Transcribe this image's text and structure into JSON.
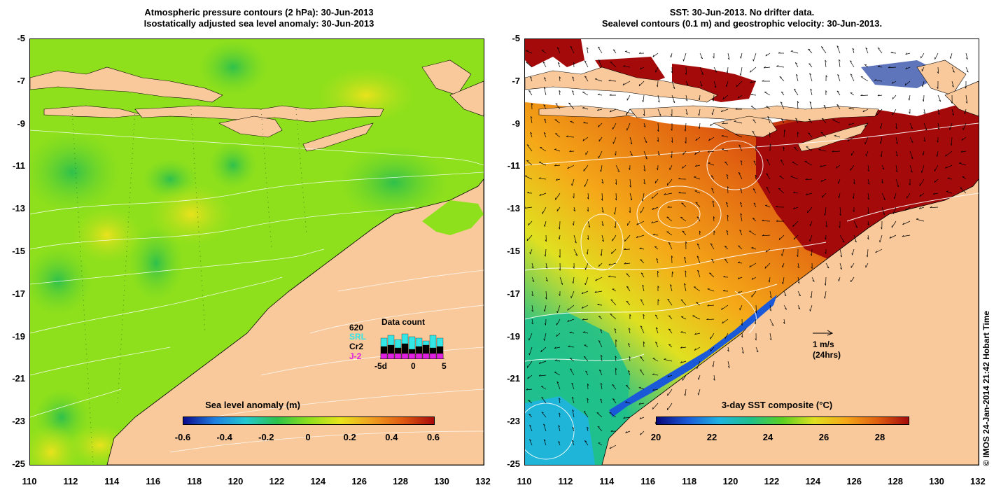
{
  "left_panel": {
    "title_line1": "Atmospheric pressure contours (2 hPa): 30-Jun-2013",
    "title_line2": "Isostatically adjusted sea level anomaly: 30-Jun-2013",
    "colorbar_title": "Sea level anomaly (m)",
    "colorbar_ticks": [
      "-0.6",
      "-0.4",
      "-0.2",
      "0",
      "0.2",
      "0.4",
      "0.6"
    ],
    "data_count": {
      "title": "Data count",
      "count": "620",
      "satellites": [
        {
          "name": "SRL",
          "color": "#33e5e5"
        },
        {
          "name": "Cr2",
          "color": "#000000"
        },
        {
          "name": "J-2",
          "color": "#e020e0"
        }
      ],
      "axis_labels": [
        "-5d",
        "0",
        "5"
      ]
    }
  },
  "right_panel": {
    "title_line1": "SST: 30-Jun-2013. No drifter data.",
    "title_line2": "Sealevel contours (0.1 m) and geostrophic velocity: 30-Jun-2013.",
    "colorbar_title": "3-day SST composite (°C)",
    "colorbar_ticks": [
      "20",
      "22",
      "24",
      "26",
      "28"
    ],
    "scale_arrow": {
      "line1": "1 m/s",
      "line2": "(24hrs)"
    }
  },
  "axes": {
    "lat_labels": [
      "-5",
      "-7",
      "-9",
      "-11",
      "-13",
      "-15",
      "-17",
      "-19",
      "-21",
      "-23",
      "-25"
    ],
    "lon_labels": [
      "110",
      "112",
      "114",
      "116",
      "118",
      "120",
      "122",
      "124",
      "126",
      "128",
      "130",
      "132"
    ]
  },
  "copyright": "© IMOS 24-Jan-2014 21:42 Hobart Time",
  "colors": {
    "land": "#f9c99b",
    "ssla_colormap": [
      "#0a0a8a",
      "#1f7fe0",
      "#22c8d0",
      "#2ec24a",
      "#8ee01c",
      "#e8e41c",
      "#f0a020",
      "#e05a10",
      "#a80a0a"
    ],
    "sst_colormap": [
      "#08087a",
      "#1a5ad8",
      "#1fb4e0",
      "#20c08a",
      "#5cd020",
      "#e0e020",
      "#f5a818",
      "#e06010",
      "#a50a0a"
    ]
  }
}
